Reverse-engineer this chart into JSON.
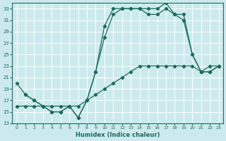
{
  "xlabel": "Humidex (Indice chaleur)",
  "bg_color": "#cceaed",
  "line_color": "#1a6b5a",
  "grid_color": "#ffffff",
  "xlim": [
    -0.5,
    23.5
  ],
  "ylim": [
    13,
    34
  ],
  "yticks": [
    13,
    15,
    17,
    19,
    21,
    23,
    25,
    27,
    29,
    31,
    33
  ],
  "xticks": [
    0,
    1,
    2,
    3,
    4,
    5,
    6,
    7,
    8,
    9,
    10,
    11,
    12,
    13,
    14,
    15,
    16,
    17,
    18,
    19,
    20,
    21,
    22,
    23
  ],
  "series1_x": [
    0,
    1,
    2,
    3,
    4,
    5,
    6,
    7,
    8,
    9,
    10,
    11,
    12,
    13,
    14,
    15,
    16,
    17,
    18,
    19,
    20,
    21,
    22,
    23
  ],
  "series1_y": [
    20,
    18,
    17,
    16,
    15,
    15,
    16,
    14,
    17,
    22,
    30,
    33,
    33,
    33,
    33,
    33,
    33,
    34,
    32,
    32,
    25,
    22,
    22,
    23
  ],
  "series2_x": [
    0,
    1,
    2,
    3,
    4,
    5,
    6,
    7,
    8,
    9,
    10,
    11,
    12,
    13,
    14,
    15,
    16,
    17,
    18,
    19,
    20,
    21,
    22,
    23
  ],
  "series2_y": [
    16,
    16,
    16,
    16,
    16,
    16,
    16,
    16,
    17,
    18,
    19,
    20,
    21,
    22,
    23,
    23,
    23,
    23,
    23,
    23,
    23,
    22,
    23,
    23
  ],
  "series3_x": [
    1,
    2,
    3,
    4,
    5,
    6,
    7,
    8,
    9,
    10,
    11,
    12,
    13,
    14,
    15,
    16,
    17,
    18,
    19,
    20,
    21,
    22,
    23
  ],
  "series3_y": [
    18,
    17,
    16,
    15,
    15,
    16,
    14,
    17,
    22,
    28,
    32,
    33,
    33,
    33,
    32,
    32,
    33,
    32,
    31,
    25,
    22,
    22,
    23
  ]
}
